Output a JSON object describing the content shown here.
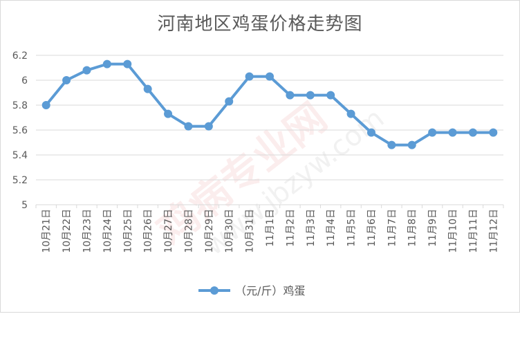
{
  "chart_data": {
    "type": "line",
    "title": "河南地区鸡蛋价格走势图",
    "categories": [
      "10月21日",
      "10月22日",
      "10月23日",
      "10月24日",
      "10月25日",
      "10月26日",
      "10月27日",
      "10月28日",
      "10月29日",
      "10月30日",
      "10月31日",
      "11月1日",
      "11月2日",
      "11月3日",
      "11月4日",
      "11月5日",
      "11月6日",
      "11月7日",
      "11月8日",
      "11月9日",
      "11月10日",
      "11月11日",
      "11月12日"
    ],
    "series": [
      {
        "name": "（元/斤）鸡蛋",
        "values": [
          5.8,
          6.0,
          6.08,
          6.13,
          6.13,
          5.93,
          5.73,
          5.63,
          5.63,
          5.83,
          6.03,
          6.03,
          5.88,
          5.88,
          5.88,
          5.73,
          5.58,
          5.48,
          5.48,
          5.58,
          5.58,
          5.58,
          5.58
        ]
      }
    ],
    "ylim": [
      5,
      6.2
    ],
    "yticks": [
      "5",
      "5.2",
      "5.4",
      "5.6",
      "5.8",
      "6",
      "6.2"
    ],
    "xlabel": "",
    "ylabel": "",
    "grid": true,
    "legend": "bottom",
    "colors": {
      "line": "#5b9bd5",
      "grid": "#d9d9d9",
      "text": "#595959"
    }
  },
  "watermark": {
    "main": "鸡病专业网",
    "url": "www.jbzyw.com"
  }
}
